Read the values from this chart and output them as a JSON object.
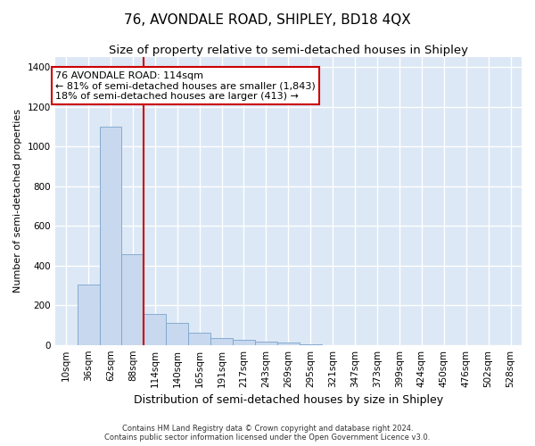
{
  "title1": "76, AVONDALE ROAD, SHIPLEY, BD18 4QX",
  "title2": "Size of property relative to semi-detached houses in Shipley",
  "xlabel": "Distribution of semi-detached houses by size in Shipley",
  "ylabel": "Number of semi-detached properties",
  "footnote": "Contains HM Land Registry data © Crown copyright and database right 2024.\nContains public sector information licensed under the Open Government Licence v3.0.",
  "bin_labels": [
    "10sqm",
    "36sqm",
    "62sqm",
    "88sqm",
    "114sqm",
    "140sqm",
    "165sqm",
    "191sqm",
    "217sqm",
    "243sqm",
    "269sqm",
    "295sqm",
    "321sqm",
    "347sqm",
    "373sqm",
    "399sqm",
    "424sqm",
    "450sqm",
    "476sqm",
    "502sqm",
    "528sqm"
  ],
  "bar_values": [
    0,
    305,
    1100,
    455,
    155,
    110,
    60,
    35,
    25,
    18,
    12,
    5,
    0,
    0,
    0,
    0,
    0,
    0,
    0,
    0,
    0
  ],
  "bar_color": "#c8d8ee",
  "bar_edge_color": "#7aa4cc",
  "vline_x_index": 4,
  "vline_color": "#cc0000",
  "annotation_text": "76 AVONDALE ROAD: 114sqm\n← 81% of semi-detached houses are smaller (1,843)\n18% of semi-detached houses are larger (413) →",
  "annotation_box_color": "#ffffff",
  "annotation_box_edge": "#cc0000",
  "ylim": [
    0,
    1450
  ],
  "yticks": [
    0,
    200,
    400,
    600,
    800,
    1000,
    1200,
    1400
  ],
  "bg_color": "#dce8f5",
  "grid_color": "#ffffff",
  "title1_fontsize": 11,
  "title2_fontsize": 9.5,
  "xlabel_fontsize": 9,
  "ylabel_fontsize": 8,
  "tick_fontsize": 7.5,
  "annotation_fontsize": 8,
  "footnote_fontsize": 6
}
